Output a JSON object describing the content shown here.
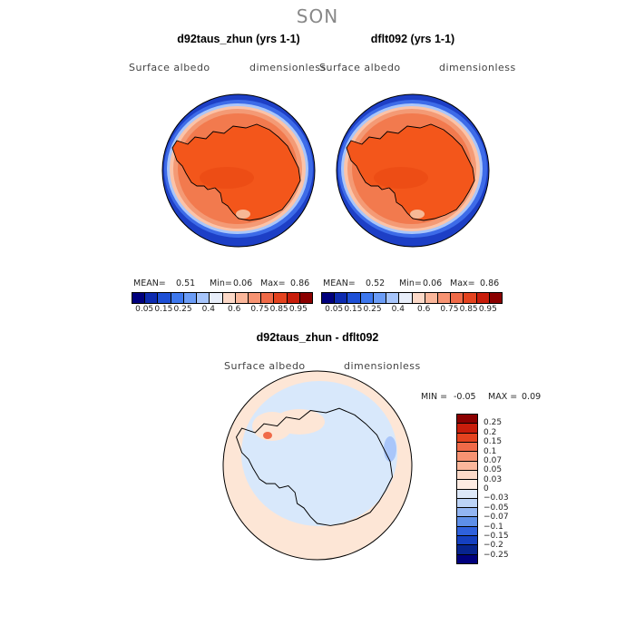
{
  "season": "SON",
  "panels": {
    "left": {
      "title": "d92taus_zhun (yrs 1-1)",
      "variable": "Surface albedo",
      "units": "dimensionless",
      "mean_label": "MEAN=",
      "mean": "0.51",
      "min_label": "Min=",
      "min": "0.06",
      "max_label": "Max=",
      "max": "0.86"
    },
    "right": {
      "title": "dflt092 (yrs 1-1)",
      "variable": "Surface albedo",
      "units": "dimensionless",
      "mean_label": "MEAN=",
      "mean": "0.52",
      "min_label": "Min=",
      "min": "0.06",
      "max_label": "Max=",
      "max": "0.86"
    },
    "diff": {
      "title": "d92taus_zhun - dflt092",
      "variable": "Surface albedo",
      "units": "dimensionless",
      "min_label": "MIN =",
      "min": "-0.05",
      "max_label": "MAX =",
      "max": "0.09"
    }
  },
  "colorbar_horizontal": {
    "colors": [
      "#00007d",
      "#0d2bb0",
      "#1e50d6",
      "#3e78ee",
      "#6b9cf6",
      "#a7c5fb",
      "#e8eefa",
      "#fcd9c8",
      "#fbb79b",
      "#f79372",
      "#f06a48",
      "#e4431f",
      "#c81d0b",
      "#8b0000"
    ],
    "tick_labels": [
      "0.05",
      "0.15",
      "0.25",
      "0.4",
      "0.6",
      "0.75",
      "0.85",
      "0.95"
    ]
  },
  "colorbar_vertical": {
    "colors": [
      "#8b0000",
      "#c81d0b",
      "#e4431f",
      "#f06a48",
      "#f79372",
      "#fbb79b",
      "#fcd9c8",
      "#fdebe2",
      "#dde8f8",
      "#bcd3f6",
      "#92b5f2",
      "#5e8fe8",
      "#2f61dc",
      "#1540c0",
      "#07248e",
      "#00007d"
    ],
    "tick_labels": [
      "0.25",
      "0.2",
      "0.15",
      "0.1",
      "0.07",
      "0.05",
      "0.03",
      "0",
      "−0.03",
      "−0.05",
      "−0.07",
      "−0.1",
      "−0.15",
      "−0.2",
      "−0.25"
    ]
  },
  "map_colors": {
    "ocean_low": "#1d3fc6",
    "sea_ice_edge": "#6f9cf2",
    "sea_ice_mid": "#f4a07e",
    "sea_ice_high": "#f0703f",
    "continent": "#f3561b",
    "diff_positive": "#fde6d6",
    "diff_negative": "#d8e8fb"
  }
}
